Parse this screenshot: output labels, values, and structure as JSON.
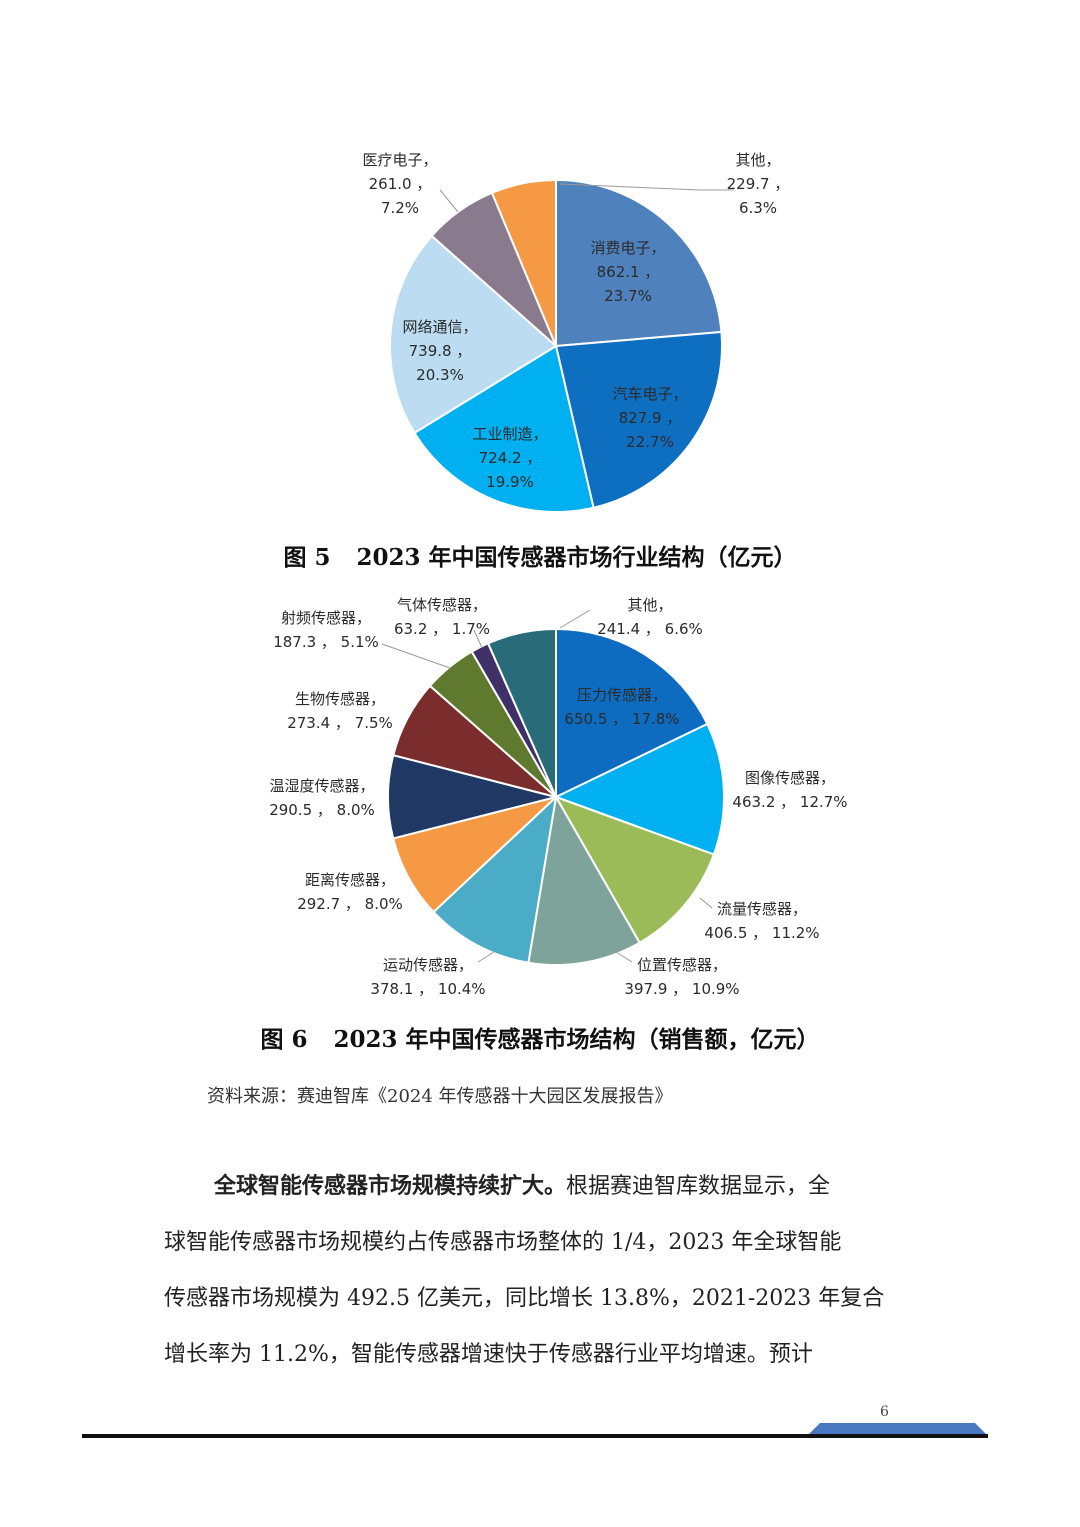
{
  "chart_data": [
    {
      "type": "pie",
      "title": "2023 年中国传感器市场行业结构（亿元）",
      "figure_number": "图 5",
      "slices": [
        {
          "name": "消费电子",
          "value": 862.1,
          "value_text": "862.1",
          "percent": "23.7%",
          "color": "#4f81bd"
        },
        {
          "name": "汽车电子",
          "value": 827.9,
          "value_text": "827.9",
          "percent": "22.7%",
          "color": "#0e6fc0"
        },
        {
          "name": "工业制造",
          "value": 724.2,
          "value_text": "724.2",
          "percent": "19.9%",
          "color": "#00b0f0"
        },
        {
          "name": "网络通信",
          "value": 739.8,
          "value_text": "739.8",
          "percent": "20.3%",
          "color": "#bcdcf2"
        },
        {
          "name": "医疗电子",
          "value": 261.0,
          "value_text": "261.0",
          "percent": "7.2%",
          "color": "#8a7a8e"
        },
        {
          "name": "其他",
          "value": 229.7,
          "value_text": "229.7",
          "percent": "6.3%",
          "color": "#f59945"
        }
      ]
    },
    {
      "type": "pie",
      "title": "2023 年中国传感器市场结构（销售额，亿元）",
      "figure_number": "图 6",
      "slices": [
        {
          "name": "压力传感器",
          "value": 650.5,
          "value_text": "650.5",
          "percent": "17.8%",
          "color": "#0d6cc0"
        },
        {
          "name": "图像传感器",
          "value": 463.2,
          "value_text": "463.2",
          "percent": "12.7%",
          "color": "#00b0f0"
        },
        {
          "name": "流量传感器",
          "value": 406.5,
          "value_text": "406.5",
          "percent": "11.2%",
          "color": "#9bbb59"
        },
        {
          "name": "位置传感器",
          "value": 397.9,
          "value_text": "397.9",
          "percent": "10.9%",
          "color": "#7ea39a"
        },
        {
          "name": "运动传感器",
          "value": 378.1,
          "value_text": "378.1",
          "percent": "10.4%",
          "color": "#4aacc6"
        },
        {
          "name": "距离传感器",
          "value": 292.7,
          "value_text": "292.7",
          "percent": "8.0%",
          "color": "#f59945"
        },
        {
          "name": "温湿度传感器",
          "value": 290.5,
          "value_text": "290.5",
          "percent": "8.0%",
          "color": "#1f3864"
        },
        {
          "name": "生物传感器",
          "value": 273.4,
          "value_text": "273.4",
          "percent": "7.5%",
          "color": "#7b2c2c"
        },
        {
          "name": "射频传感器",
          "value": 187.3,
          "value_text": "187.3",
          "percent": "5.1%",
          "color": "#5f7a2e"
        },
        {
          "name": "气体传感器",
          "value": 63.2,
          "value_text": "63.2",
          "percent": "1.7%",
          "color": "#3f3068"
        },
        {
          "name": "其他",
          "value": 241.4,
          "value_text": "241.4",
          "percent": "6.6%",
          "color": "#2a6b7a"
        }
      ]
    }
  ],
  "source_note": "资料来源：赛迪智库《2024 年传感器十大园区发展报告》",
  "paragraph": {
    "lead_bold": "全球智能传感器市场规模持续扩大。",
    "line1_rest": "根据赛迪智库数据显示，全",
    "line2": "球智能传感器市场规模约占传感器市场整体的 1/4，2023 年全球智能",
    "line3": "传感器市场规模为 492.5 亿美元，同比增长 13.8%，2021-2023 年复合",
    "line4": "增长率为 11.2%，智能传感器增速快于传感器行业平均增速。预计"
  },
  "page_number": "6"
}
